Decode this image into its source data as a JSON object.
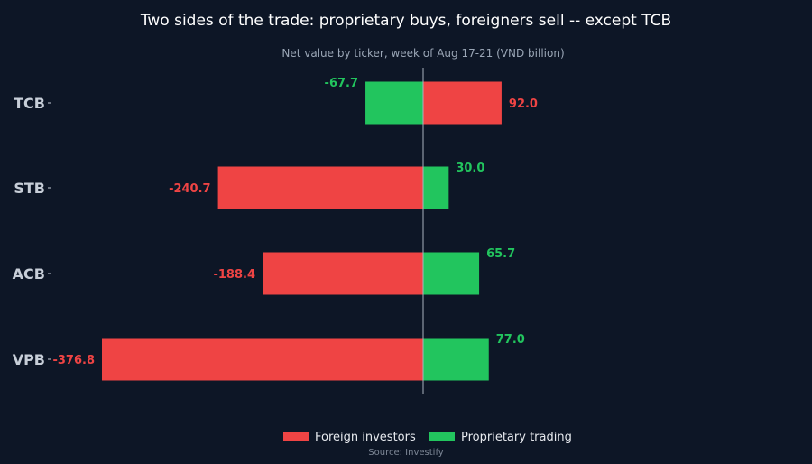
{
  "chart_data": {
    "type": "bar",
    "orientation": "horizontal",
    "title": "Two sides of the trade: proprietary buys, foreigners sell -- except TCB",
    "subtitle": "Net value by ticker, week of Aug 17-21 (VND billion)",
    "categories": [
      "TCB",
      "STB",
      "ACB",
      "VPB"
    ],
    "series": [
      {
        "name": "Foreign investors",
        "values": [
          92.0,
          -240.7,
          -188.4,
          -376.8
        ],
        "color": "#ef4444"
      },
      {
        "name": "Proprietary trading",
        "values": [
          -67.7,
          30.0,
          65.7,
          77.0
        ],
        "color": "#22c55e"
      }
    ],
    "value_labels": {
      "foreign": [
        "92.0",
        "-240.7",
        "-188.4",
        "-376.8"
      ],
      "proprietary": [
        "-67.7",
        "30.0",
        "65.7",
        "77.0"
      ]
    },
    "xlim": [
      -400,
      130
    ],
    "grid": false,
    "legend": "bottom-center",
    "source": "Source: Investify"
  },
  "colors": {
    "background": "#0d1626",
    "foreign": "#ef4444",
    "proprietary": "#22c55e",
    "zero_line": "#a9b2bd"
  }
}
